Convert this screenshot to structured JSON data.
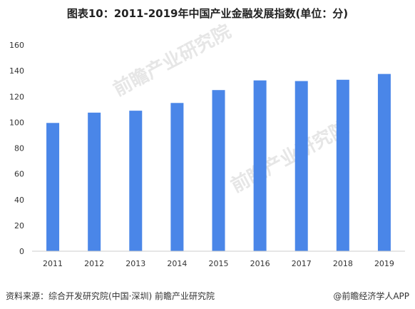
{
  "chart_data": {
    "type": "bar",
    "title": "图表10：2011-2019年中国产业金融发展指数(单位：分)",
    "categories": [
      "2011",
      "2012",
      "2013",
      "2014",
      "2015",
      "2016",
      "2017",
      "2018",
      "2019"
    ],
    "values": [
      99.5,
      107.5,
      109,
      115,
      125,
      132.5,
      132,
      133,
      137.5
    ],
    "ylim": [
      0,
      160
    ],
    "yticks": [
      0,
      20,
      40,
      60,
      80,
      100,
      120,
      140,
      160
    ],
    "xlabel": "",
    "ylabel": "",
    "grid": false,
    "bar_color": "#4a86e8"
  },
  "source": "资料来源：综合开发研究院(中国·深圳) 前瞻产业研究院",
  "credit": "@前瞻经济学人APP",
  "watermark": "前瞻产业研究院"
}
